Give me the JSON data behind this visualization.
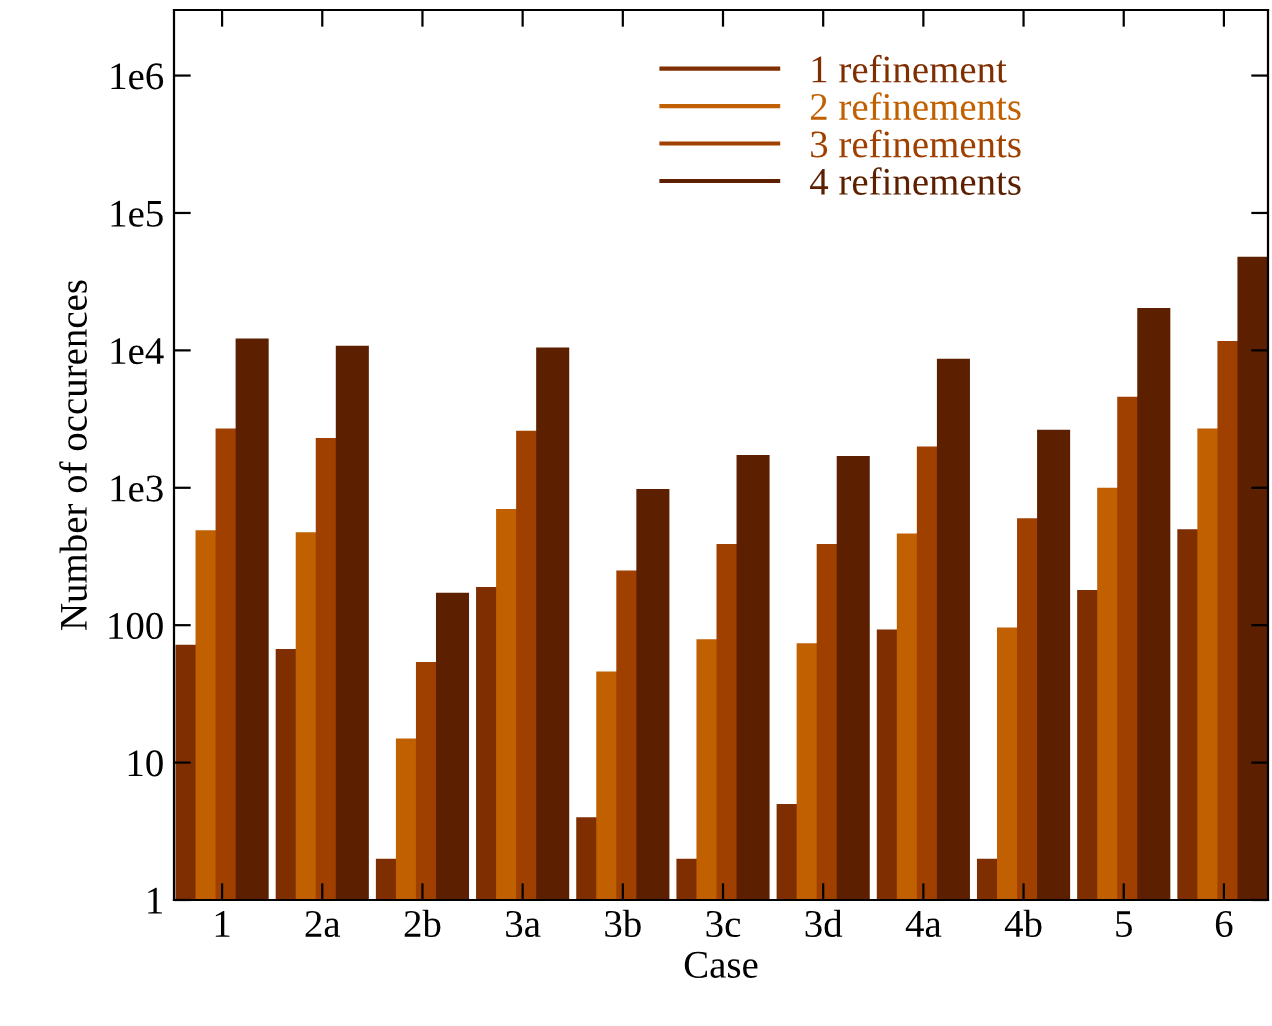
{
  "chart_data": {
    "type": "bar",
    "xlabel": "Case",
    "ylabel": "Number of occurences",
    "categories": [
      "1",
      "2a",
      "2b",
      "3a",
      "3b",
      "3c",
      "3d",
      "4a",
      "4b",
      "5",
      "6"
    ],
    "series": [
      {
        "name": "1 refinement",
        "color": "#7e2e00",
        "values": [
          72,
          67,
          2,
          190,
          4,
          2,
          5,
          93,
          2,
          180,
          500
        ]
      },
      {
        "name": "2 refinements",
        "color": "#c06000",
        "values": [
          490,
          475,
          15,
          700,
          46,
          79,
          74,
          465,
          96,
          1000,
          2700
        ]
      },
      {
        "name": "3 refinements",
        "color": "#a04000",
        "values": [
          2700,
          2300,
          54,
          2600,
          250,
          390,
          390,
          2000,
          600,
          4600,
          11700
        ]
      },
      {
        "name": "4 refinements",
        "color": "#5c2000",
        "values": [
          12200,
          10800,
          172,
          10500,
          980,
          1730,
          1700,
          8700,
          2640,
          20300,
          48000
        ]
      }
    ],
    "log": true,
    "ylim": [
      1,
      3000000
    ],
    "yticks": [
      1,
      10,
      100,
      {
        "value": 1000,
        "label": "1e3"
      },
      {
        "value": 10000,
        "label": "1e4"
      },
      {
        "value": 100000,
        "label": "1e5"
      },
      {
        "value": 1000000,
        "label": "1e6"
      }
    ],
    "legend": "top right",
    "grid": false
  }
}
